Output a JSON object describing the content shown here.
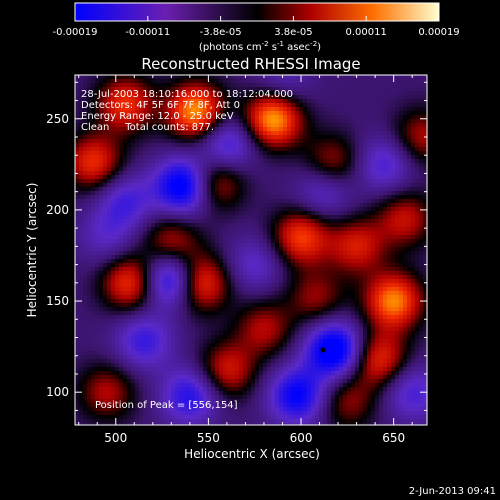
{
  "colorbar": {
    "ticks": [
      "-0.00019",
      "-0.00011",
      "-3.8e-05",
      "3.8e-05",
      "0.00011",
      "0.00019"
    ],
    "unit_prefix": "(photons cm",
    "unit_exp1": "-2",
    "unit_mid": " s",
    "unit_exp2": "-1",
    "unit_mid2": " asec",
    "unit_exp3": "-2",
    "unit_suffix": ")"
  },
  "chart_data": {
    "type": "heatmap",
    "title": "Reconstructed RHESSI Image",
    "xlabel": "Heliocentric X (arcsec)",
    "ylabel": "Heliocentric Y (arcsec)",
    "xlim": [
      478,
      668
    ],
    "ylim": [
      82,
      274
    ],
    "x_ticks": [
      500,
      550,
      600,
      650
    ],
    "y_ticks": [
      100,
      150,
      200,
      250
    ],
    "colorscale_range": [
      -0.00019,
      0.00019
    ],
    "annotations": [
      "28-Jul-2003 18:10:16.000 to 18:12:04.000",
      "Detectors: 4F 5F 6F 7F 8F, Att 0",
      "Energy Range: 12.0 - 25.0 keV",
      "Clean     Total counts: 877."
    ],
    "peak_label": "Position of Peak = [556,154]",
    "blobs": [
      {
        "x": 543,
        "y": 254,
        "v": 0.00018
      },
      {
        "x": 585,
        "y": 250,
        "v": 0.00019
      },
      {
        "x": 505,
        "y": 258,
        "v": 0.00013
      },
      {
        "x": 553,
        "y": 215,
        "v": 0.00012
      },
      {
        "x": 617,
        "y": 226,
        "v": 9e-05
      },
      {
        "x": 488,
        "y": 226,
        "v": 0.00013
      },
      {
        "x": 545,
        "y": 160,
        "v": 0.00016
      },
      {
        "x": 508,
        "y": 160,
        "v": 0.00014
      },
      {
        "x": 530,
        "y": 182,
        "v": 0.0001
      },
      {
        "x": 600,
        "y": 185,
        "v": 0.00014
      },
      {
        "x": 630,
        "y": 180,
        "v": 0.00011
      },
      {
        "x": 656,
        "y": 195,
        "v": 0.0001
      },
      {
        "x": 608,
        "y": 152,
        "v": 8e-05
      },
      {
        "x": 650,
        "y": 150,
        "v": 0.00017
      },
      {
        "x": 642,
        "y": 118,
        "v": 0.00013
      },
      {
        "x": 560,
        "y": 112,
        "v": 0.00011
      },
      {
        "x": 580,
        "y": 135,
        "v": 9e-05
      },
      {
        "x": 495,
        "y": 100,
        "v": 9e-05
      },
      {
        "x": 625,
        "y": 95,
        "v": 8e-05
      },
      {
        "x": 665,
        "y": 240,
        "v": 9e-05
      },
      {
        "x": 537,
        "y": 213,
        "v": -0.00019
      },
      {
        "x": 560,
        "y": 236,
        "v": -0.00011
      },
      {
        "x": 612,
        "y": 210,
        "v": -8e-05
      },
      {
        "x": 530,
        "y": 162,
        "v": -0.00018
      },
      {
        "x": 505,
        "y": 205,
        "v": -9e-05
      },
      {
        "x": 618,
        "y": 123,
        "v": -0.00019
      },
      {
        "x": 598,
        "y": 98,
        "v": -0.00015
      },
      {
        "x": 540,
        "y": 98,
        "v": -0.00012
      },
      {
        "x": 515,
        "y": 128,
        "v": -0.0001
      },
      {
        "x": 645,
        "y": 225,
        "v": -9e-05
      },
      {
        "x": 575,
        "y": 170,
        "v": -7e-05
      },
      {
        "x": 660,
        "y": 100,
        "v": -9e-05
      },
      {
        "x": 495,
        "y": 185,
        "v": -6e-05
      },
      {
        "x": 590,
        "y": 270,
        "v": -6e-05
      }
    ]
  },
  "footer": {
    "timestamp": "2-Jun-2013 09:41"
  }
}
